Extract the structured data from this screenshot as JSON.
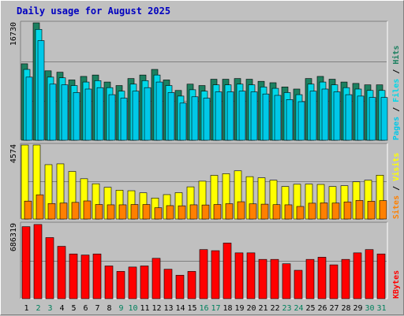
{
  "title": "Daily usage for August 2025",
  "colors": {
    "hits": "#1c8060",
    "files": "#00d8e8",
    "pages": "#00c8e8",
    "visits": "#ffff00",
    "sites": "#ff8000",
    "kbytes": "#ff0000",
    "weekend_label": "#00805c",
    "weekday_label": "#000000",
    "title": "#0000c0",
    "separator": "#000000"
  },
  "chart_data": [
    {
      "type": "bar",
      "panel": "top",
      "max_label": "16730",
      "ylim": [
        0,
        16730
      ],
      "legend": [
        "Pages",
        "Files",
        "Hits"
      ],
      "categories": [
        "1",
        "2",
        "3",
        "4",
        "5",
        "6",
        "7",
        "8",
        "9",
        "10",
        "11",
        "12",
        "13",
        "14",
        "15",
        "16",
        "17",
        "18",
        "19",
        "20",
        "21",
        "22",
        "23",
        "24",
        "25",
        "26",
        "27",
        "28",
        "29",
        "30",
        "31"
      ],
      "weekend": [
        false,
        true,
        true,
        false,
        false,
        false,
        false,
        false,
        true,
        true,
        false,
        false,
        false,
        false,
        false,
        true,
        true,
        false,
        false,
        false,
        false,
        false,
        true,
        true,
        false,
        false,
        false,
        false,
        false,
        true,
        true
      ],
      "series": [
        {
          "name": "Hits",
          "values": [
            10900,
            16730,
            9900,
            9700,
            8600,
            9100,
            9300,
            8300,
            7800,
            8800,
            9300,
            10100,
            8600,
            7100,
            8000,
            7800,
            8700,
            8700,
            8800,
            8700,
            8400,
            8200,
            7600,
            7300,
            8800,
            9100,
            8700,
            8300,
            8100,
            7900,
            7900
          ]
        },
        {
          "name": "Files",
          "values": [
            10100,
            15800,
            9000,
            8900,
            7800,
            8300,
            8500,
            7500,
            7000,
            8000,
            8500,
            9300,
            7800,
            6300,
            7200,
            7000,
            7900,
            7900,
            8000,
            7900,
            7600,
            7400,
            6800,
            6500,
            8000,
            8300,
            7900,
            7500,
            7300,
            7100,
            7100
          ]
        },
        {
          "name": "Pages",
          "values": [
            9000,
            14200,
            8000,
            7900,
            6800,
            7300,
            7500,
            6500,
            6000,
            7000,
            7500,
            8300,
            6800,
            5300,
            6200,
            6000,
            6900,
            6900,
            7000,
            6900,
            6600,
            6400,
            5800,
            5500,
            7000,
            7300,
            6900,
            6500,
            6300,
            6100,
            6100
          ]
        }
      ]
    },
    {
      "type": "bar",
      "panel": "middle",
      "max_label": "4574",
      "ylim": [
        0,
        4574
      ],
      "legend": [
        "Sites",
        "Visits"
      ],
      "categories": [
        "1",
        "2",
        "3",
        "4",
        "5",
        "6",
        "7",
        "8",
        "9",
        "10",
        "11",
        "12",
        "13",
        "14",
        "15",
        "16",
        "17",
        "18",
        "19",
        "20",
        "21",
        "22",
        "23",
        "24",
        "25",
        "26",
        "27",
        "28",
        "29",
        "30",
        "31"
      ],
      "series": [
        {
          "name": "Visits",
          "values": [
            4574,
            4574,
            3360,
            3410,
            2940,
            2490,
            2180,
            1960,
            1780,
            1750,
            1620,
            1300,
            1510,
            1630,
            1990,
            2340,
            2700,
            2800,
            2980,
            2620,
            2550,
            2400,
            2010,
            2150,
            2160,
            2140,
            2010,
            2060,
            2300,
            2400,
            2710
          ]
        },
        {
          "name": "Sites",
          "values": [
            1110,
            1500,
            960,
            990,
            1030,
            1120,
            900,
            880,
            880,
            900,
            900,
            700,
            830,
            820,
            880,
            870,
            900,
            950,
            1070,
            940,
            920,
            890,
            880,
            780,
            980,
            1000,
            990,
            1060,
            1150,
            1100,
            1140
          ]
        }
      ]
    },
    {
      "type": "bar",
      "panel": "bottom",
      "max_label": "686319",
      "ylim": [
        0,
        686319
      ],
      "legend": [
        "KBytes"
      ],
      "categories": [
        "1",
        "2",
        "3",
        "4",
        "5",
        "6",
        "7",
        "8",
        "9",
        "10",
        "11",
        "12",
        "13",
        "14",
        "15",
        "16",
        "17",
        "18",
        "19",
        "20",
        "21",
        "22",
        "23",
        "24",
        "25",
        "26",
        "27",
        "28",
        "29",
        "30",
        "31"
      ],
      "series": [
        {
          "name": "KBytes",
          "values": [
            660000,
            680000,
            560000,
            480000,
            410000,
            400000,
            410000,
            300000,
            250000,
            290000,
            300000,
            370000,
            270000,
            215000,
            250000,
            450000,
            440000,
            510000,
            420000,
            420000,
            360000,
            360000,
            320000,
            260000,
            360000,
            380000,
            310000,
            360000,
            420000,
            450000,
            410000
          ]
        }
      ]
    }
  ]
}
